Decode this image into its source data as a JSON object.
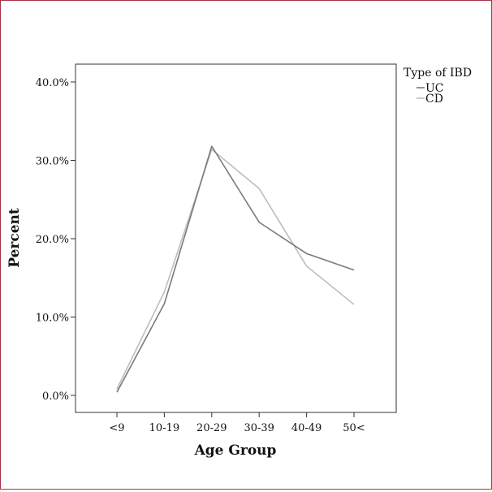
{
  "chart_data": {
    "type": "line",
    "title": "",
    "xlabel": "Age Group",
    "ylabel": "Percent",
    "categories": [
      "<9",
      "10-19",
      "20-29",
      "30-39",
      "40-49",
      "50<"
    ],
    "ylim": [
      0,
      40
    ],
    "yticks": [
      "0.0%",
      "10.0%",
      "20.0%",
      "30.0%",
      "40.0%"
    ],
    "ytick_values": [
      0,
      10,
      20,
      30,
      40
    ],
    "grid": false,
    "legend": {
      "title": "Type of IBD",
      "placement": "top-right, outside plot"
    },
    "series": [
      {
        "name": "UC",
        "color": "#7a7a7a",
        "values": [
          0.4,
          11.7,
          31.8,
          22.1,
          18.1,
          16.0
        ]
      },
      {
        "name": "CD",
        "color": "#bdbdbd",
        "values": [
          0.8,
          13.2,
          31.4,
          26.4,
          16.5,
          11.6
        ]
      }
    ]
  }
}
